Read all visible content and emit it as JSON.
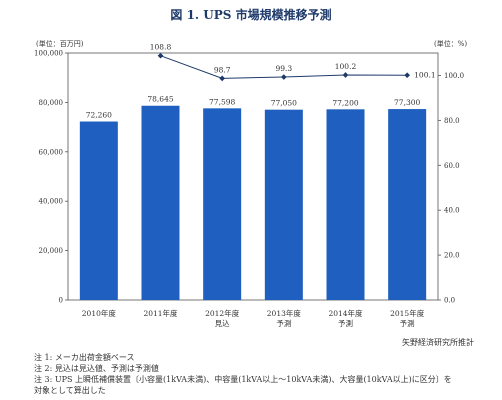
{
  "chart_data": {
    "type": "bar+line",
    "title": "図 1. UPS 市場規模推移予測",
    "left_axis": {
      "unit_label": "(単位：百万円)",
      "range": [
        0,
        100000
      ],
      "ticks": [
        "100,000",
        "80,000",
        "60,000",
        "40,000",
        "20,000",
        "0"
      ]
    },
    "right_axis": {
      "unit_label": "(単位：%)",
      "range": [
        0,
        110
      ],
      "ticks": [
        "100.0",
        "80.0",
        "60.0",
        "40.0",
        "20.0",
        "0.0"
      ]
    },
    "categories": [
      {
        "line1": "2010年度",
        "line2": ""
      },
      {
        "line1": "2011年度",
        "line2": ""
      },
      {
        "line1": "2012年度",
        "line2": "見込"
      },
      {
        "line1": "2013年度",
        "line2": "予測"
      },
      {
        "line1": "2014年度",
        "line2": "予測"
      },
      {
        "line1": "2015年度",
        "line2": "予測"
      }
    ],
    "bars": {
      "values": [
        72260,
        78645,
        77598,
        77050,
        77200,
        77300
      ],
      "labels": [
        "72,260",
        "78,645",
        "77,598",
        "77,050",
        "77,200",
        "77,300"
      ],
      "color": "#1f5fbf"
    },
    "line": {
      "values": [
        null,
        108.8,
        98.7,
        99.3,
        100.2,
        100.1
      ],
      "labels": [
        "",
        "108.8",
        "98.7",
        "99.3",
        "100.2",
        "100.1"
      ],
      "color": "#1e3a6a"
    },
    "grid": false
  },
  "source": "矢野経済研究所推計",
  "notes": [
    "注 1:  メーカ出荷金額ベース",
    "注 2:  見込は見込値、予測は予測値",
    "注 3:  UPS 上瞬低補償装置〔小容量(1kVA未満)、中容量(1kVA以上～10kVA未満)、大容量(10kVA以上)に区分〕を",
    "        対象として算出した"
  ]
}
